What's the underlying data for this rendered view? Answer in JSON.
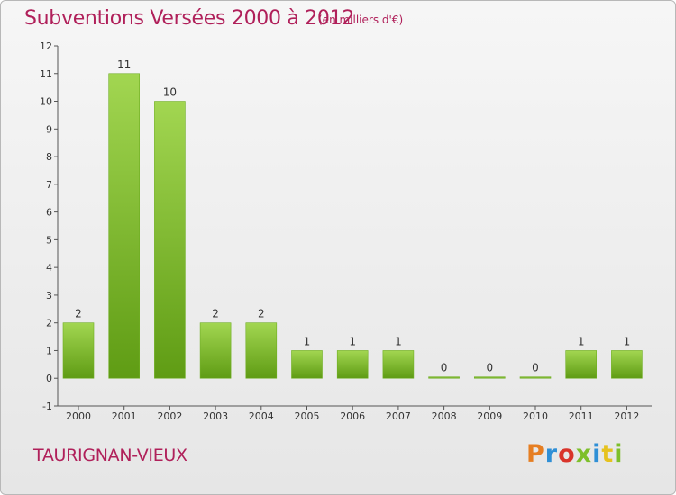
{
  "chart_data": {
    "type": "bar",
    "title": "Subventions Versées 2000 à 2012",
    "subtitle": "(en milliers d'€)",
    "categories": [
      "2000",
      "2001",
      "2002",
      "2003",
      "2004",
      "2005",
      "2006",
      "2007",
      "2008",
      "2009",
      "2010",
      "2011",
      "2012"
    ],
    "values": [
      2,
      11,
      10,
      2,
      2,
      1,
      1,
      1,
      0,
      0,
      0,
      1,
      1
    ],
    "ylim": [
      -1,
      12
    ],
    "yticks": [
      -1,
      0,
      1,
      2,
      3,
      4,
      5,
      6,
      7,
      8,
      9,
      10,
      11,
      12
    ],
    "grid": false,
    "colors": {
      "bar_top": "#a2d651",
      "bar_bottom": "#5f9c14",
      "title": "#b0205a"
    }
  },
  "footer": {
    "place_name": "TAURIGNAN-VIEUX",
    "brand": "Proxiti",
    "brand_colors": [
      "#e67e22",
      "#2f8fd6",
      "#d9342b",
      "#7dbf2a",
      "#2f8fd6",
      "#e6c21f",
      "#7dbf2a"
    ]
  }
}
